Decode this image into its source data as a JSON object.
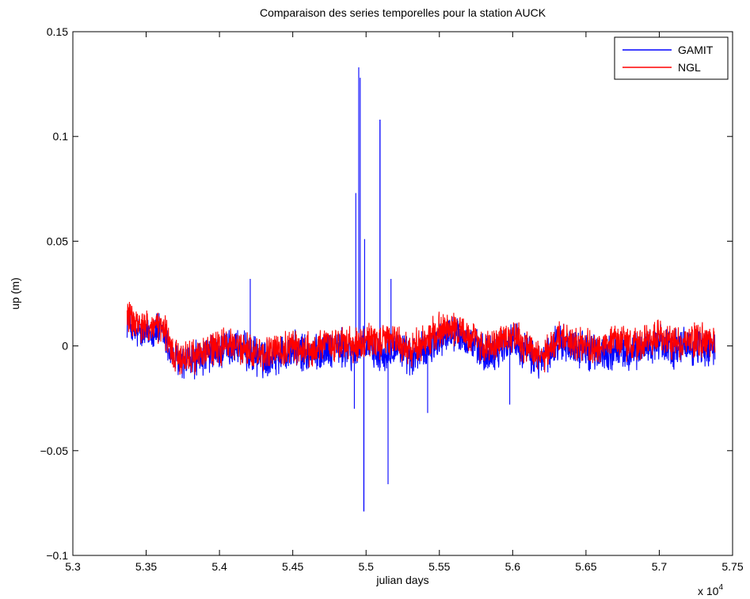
{
  "chart_data": {
    "type": "line",
    "title": "Comparaison des series temporelles pour la station AUCK",
    "xlabel": "julian days",
    "ylabel": "up (m)",
    "x_multiplier_label": "x 10",
    "x_multiplier_exponent": "4",
    "xlim": [
      5.3,
      5.75
    ],
    "ylim": [
      -0.1,
      0.15
    ],
    "x_unit_scale": 10000,
    "xticks": [
      5.3,
      5.35,
      5.4,
      5.45,
      5.5,
      5.55,
      5.6,
      5.65,
      5.7,
      5.75
    ],
    "xtick_labels": [
      "5.3",
      "5.35",
      "5.4",
      "5.45",
      "5.5",
      "5.55",
      "5.6",
      "5.65",
      "5.7",
      "5.75"
    ],
    "yticks": [
      -0.1,
      -0.05,
      0,
      0.05,
      0.1,
      0.15
    ],
    "ytick_labels": [
      "−0.1",
      "−0.05",
      "0",
      "0.05",
      "0.1",
      "0.15"
    ],
    "grid": false,
    "legend_position": "top-right",
    "x_start": 53370,
    "x_end": 57380,
    "series": [
      {
        "name": "GAMIT",
        "color": "#0000ff",
        "spikes": [
          {
            "x": 54930,
            "y": 0.073
          },
          {
            "x": 54950,
            "y": 0.133
          },
          {
            "x": 54960,
            "y": 0.128
          },
          {
            "x": 54985,
            "y": -0.079
          },
          {
            "x": 54990,
            "y": 0.051
          },
          {
            "x": 55095,
            "y": 0.108
          },
          {
            "x": 55150,
            "y": -0.066
          },
          {
            "x": 55170,
            "y": 0.032
          },
          {
            "x": 54210,
            "y": 0.032
          },
          {
            "x": 54920,
            "y": -0.03
          },
          {
            "x": 55420,
            "y": -0.032
          },
          {
            "x": 55980,
            "y": -0.028
          }
        ],
        "anchors": [
          [
            53370,
            0.014
          ],
          [
            53420,
            0.006
          ],
          [
            53500,
            0.006
          ],
          [
            53550,
            0.008
          ],
          [
            53620,
            0.006
          ],
          [
            53680,
            -0.006
          ],
          [
            53750,
            -0.008
          ],
          [
            53850,
            -0.006
          ],
          [
            53950,
            -0.004
          ],
          [
            54100,
            0.0
          ],
          [
            54200,
            -0.004
          ],
          [
            54300,
            -0.006
          ],
          [
            54400,
            -0.004
          ],
          [
            54500,
            -0.002
          ],
          [
            54600,
            -0.004
          ],
          [
            54700,
            -0.002
          ],
          [
            54800,
            0.0
          ],
          [
            54900,
            -0.004
          ],
          [
            55000,
            0.0
          ],
          [
            55100,
            -0.004
          ],
          [
            55200,
            0.0
          ],
          [
            55300,
            -0.006
          ],
          [
            55400,
            -0.002
          ],
          [
            55500,
            0.004
          ],
          [
            55600,
            0.006
          ],
          [
            55700,
            0.002
          ],
          [
            55800,
            -0.004
          ],
          [
            55900,
            -0.002
          ],
          [
            56000,
            0.004
          ],
          [
            56100,
            -0.004
          ],
          [
            56200,
            -0.008
          ],
          [
            56300,
            0.002
          ],
          [
            56400,
            0.0
          ],
          [
            56500,
            -0.002
          ],
          [
            56600,
            -0.004
          ],
          [
            56700,
            -0.002
          ],
          [
            56800,
            -0.004
          ],
          [
            56900,
            0.0
          ],
          [
            57000,
            0.002
          ],
          [
            57100,
            -0.002
          ],
          [
            57200,
            0.0
          ],
          [
            57380,
            -0.001
          ]
        ]
      },
      {
        "name": "NGL",
        "color": "#ff0000",
        "anchors": [
          [
            53370,
            0.016
          ],
          [
            53420,
            0.01
          ],
          [
            53500,
            0.008
          ],
          [
            53550,
            0.009
          ],
          [
            53620,
            0.008
          ],
          [
            53680,
            -0.004
          ],
          [
            53750,
            -0.006
          ],
          [
            53850,
            -0.004
          ],
          [
            53950,
            -0.002
          ],
          [
            54100,
            0.001
          ],
          [
            54200,
            -0.002
          ],
          [
            54300,
            -0.004
          ],
          [
            54400,
            -0.002
          ],
          [
            54500,
            0.0
          ],
          [
            54600,
            -0.002
          ],
          [
            54700,
            0.0
          ],
          [
            54800,
            0.002
          ],
          [
            54900,
            0.0
          ],
          [
            55000,
            0.003
          ],
          [
            55100,
            0.002
          ],
          [
            55200,
            0.003
          ],
          [
            55300,
            -0.002
          ],
          [
            55400,
            0.002
          ],
          [
            55500,
            0.008
          ],
          [
            55600,
            0.009
          ],
          [
            55700,
            0.004
          ],
          [
            55800,
            0.0
          ],
          [
            55900,
            0.002
          ],
          [
            56000,
            0.006
          ],
          [
            56100,
            -0.002
          ],
          [
            56200,
            -0.006
          ],
          [
            56300,
            0.004
          ],
          [
            56400,
            0.002
          ],
          [
            56500,
            0.0
          ],
          [
            56600,
            -0.002
          ],
          [
            56700,
            0.002
          ],
          [
            56800,
            0.0
          ],
          [
            56900,
            0.003
          ],
          [
            57000,
            0.005
          ],
          [
            57100,
            0.001
          ],
          [
            57200,
            0.003
          ],
          [
            57380,
            0.002
          ]
        ]
      }
    ]
  }
}
